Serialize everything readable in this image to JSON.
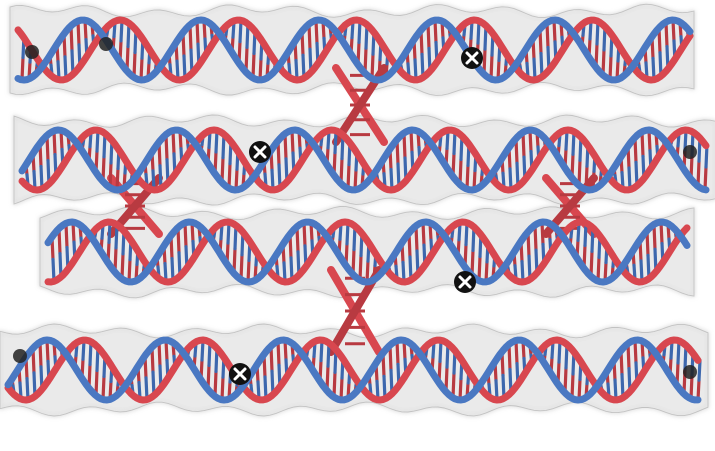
{
  "figure": {
    "panel_label": "",
    "colors": {
      "background": "#ffffff",
      "density_map": "#d9d9d9",
      "density_edge": "#a9a9a9",
      "strand_blue": "#4a78c2",
      "strand_red": "#d8474f",
      "base_red": "#b83a41",
      "base_blue": "#3d67ad",
      "marker_fill": "#111111",
      "marker_cross": "#ffffff"
    },
    "helices": [
      {
        "name": "helix-row-1"
      },
      {
        "name": "helix-row-2"
      },
      {
        "name": "helix-row-3"
      },
      {
        "name": "helix-row-4"
      }
    ],
    "crossovers": [
      {
        "name": "crossover-row1-row2"
      },
      {
        "name": "crossover-row2-row3-left"
      },
      {
        "name": "crossover-row2-row3-right"
      },
      {
        "name": "crossover-row3-row4"
      }
    ],
    "markers": [
      {
        "name": "marker-row1"
      },
      {
        "name": "marker-row2"
      },
      {
        "name": "marker-row3"
      },
      {
        "name": "marker-row4"
      }
    ]
  }
}
